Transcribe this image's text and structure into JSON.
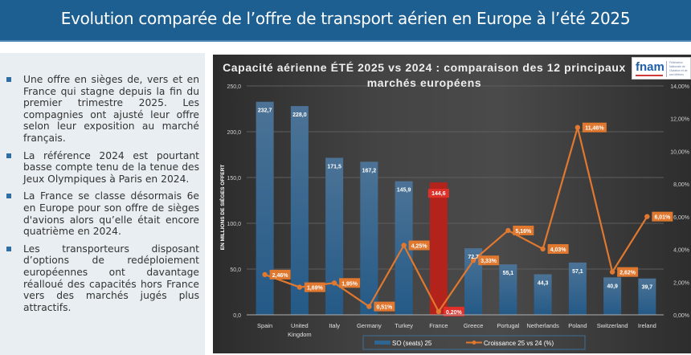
{
  "header": {
    "title": "Evolution comparée de l’offre de transport aérien en Europe à l’été 2025"
  },
  "left_panel": {
    "bullets": [
      "Une offre en sièges de, vers et en France qui stagne depuis la fin du premier trimestre 2025. Les compagnies ont ajusté leur offre selon leur exposition au marché français.",
      "La référence 2024 est pourtant basse compte tenu de la tenue des Jeux Olympiques à Paris en 2024.",
      "La France se classe désormais 6e en Europe pour son offre de sièges d'avions alors qu’elle était encore quatrième en 2024.",
      "Les transporteurs disposant d’options de redéploiement européennes ont davantage réalloué des capacités hors France vers des marchés jugés plus attractifs."
    ]
  },
  "logo": {
    "word": "fnam",
    "subtitle": "Fédération Nationale de l'Aviation et de ses Métiers"
  },
  "chart_data": {
    "type": "bar",
    "title": "Capacité aérienne ÉTÉ 2025 vs 2024 : comparaison des 12 principaux marchés européens",
    "xlabel": "",
    "ylabel": "EN MILLIONS DE SIÈGES OFFERT",
    "y2label": "",
    "categories": [
      "Spain",
      "United Kingdom",
      "Italy",
      "Germany",
      "Turkey",
      "France",
      "Greece",
      "Portugal",
      "Netherlands",
      "Poland",
      "Switzerland",
      "Ireland"
    ],
    "category_labels": [
      [
        "Spain"
      ],
      [
        "United",
        "Kingdom"
      ],
      [
        "Italy"
      ],
      [
        "Germany"
      ],
      [
        "Turkey"
      ],
      [
        "France"
      ],
      [
        "Greece"
      ],
      [
        "Portugal"
      ],
      [
        "Netherlands"
      ],
      [
        "Poland"
      ],
      [
        "Switzerland"
      ],
      [
        "Ireland"
      ]
    ],
    "series": [
      {
        "name": "SO (seats) 25",
        "kind": "bar",
        "axis": "left",
        "values": [
          232.7,
          228.0,
          171.5,
          167.2,
          145.9,
          144.6,
          72.7,
          55.1,
          44.3,
          57.1,
          40.9,
          39.7
        ],
        "labels": [
          "232,7",
          "228,0",
          "171,5",
          "167,2",
          "145,9",
          "144,6",
          "72,7",
          "55,1",
          "44,3",
          "57,1",
          "40,9",
          "39,7"
        ],
        "color": "#2f6591",
        "highlight": {
          "category": "France",
          "color": "#b3231b",
          "label_bg": "#e0302a"
        }
      },
      {
        "name": "Croissance 25 vs 24 (%)",
        "kind": "line",
        "axis": "right",
        "values": [
          2.46,
          1.69,
          1.95,
          0.51,
          4.25,
          0.2,
          3.33,
          5.16,
          4.03,
          11.46,
          2.62,
          6.01
        ],
        "labels": [
          "2,46%",
          "1,69%",
          "1,95%",
          "0,51%",
          "4,25%",
          "0,20%",
          "3,33%",
          "5,16%",
          "4,03%",
          "11,46%",
          "2,62%",
          "6,01%"
        ],
        "color": "#e0782f"
      }
    ],
    "ylim": [
      0,
      250
    ],
    "yticks": [
      0,
      50,
      100,
      150,
      200,
      250
    ],
    "ytick_labels": [
      "0,0",
      "50,0",
      "100,0",
      "150,0",
      "200,0",
      "250,0"
    ],
    "y2lim": [
      0,
      14
    ],
    "y2ticks": [
      0,
      2,
      4,
      6,
      8,
      10,
      12,
      14
    ],
    "y2tick_labels": [
      "0,00%",
      "2,00%",
      "4,00%",
      "6,00%",
      "8,00%",
      "10,00%",
      "12,00%",
      "14,00%"
    ],
    "grid": true,
    "legend": {
      "position": "bottom",
      "entries": [
        "SO (seats) 25",
        "Croissance 25 vs 24 (%)"
      ]
    }
  }
}
